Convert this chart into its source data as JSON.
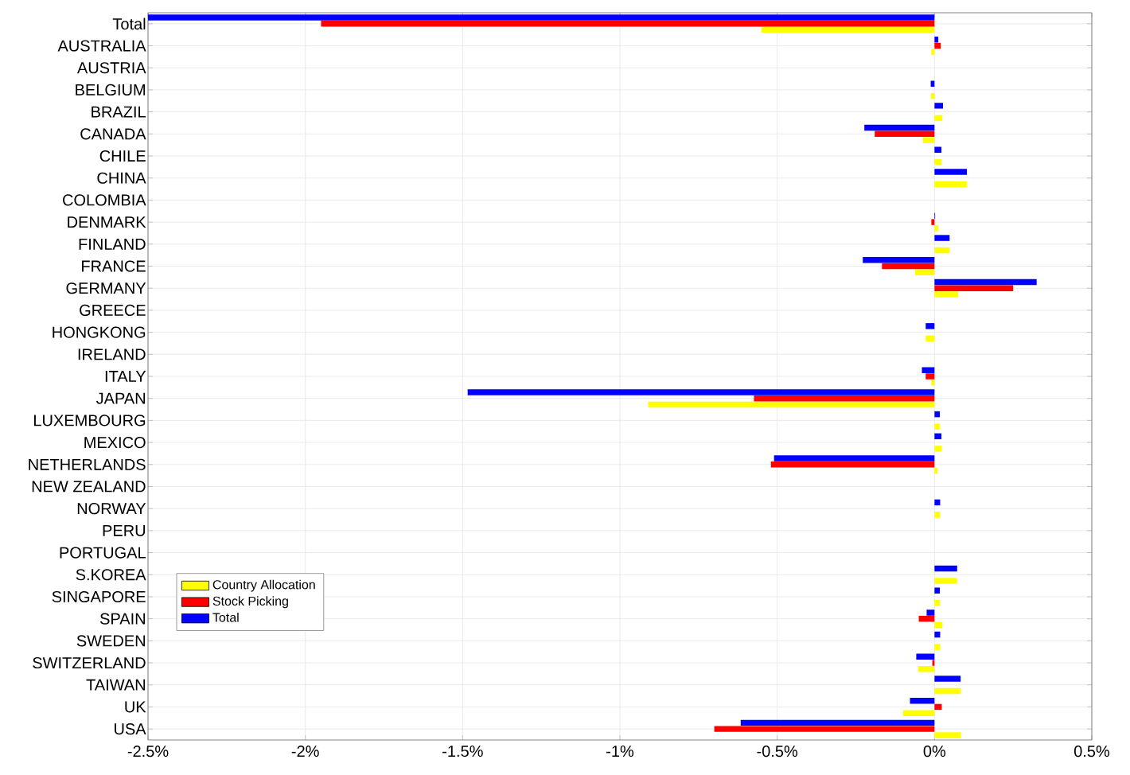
{
  "chart_data": {
    "type": "bar",
    "orientation": "horizontal",
    "categories": [
      "Total",
      "AUSTRALIA",
      "AUSTRIA",
      "BELGIUM",
      "BRAZIL",
      "CANADA",
      "CHILE",
      "CHINA",
      "COLOMBIA",
      "DENMARK",
      "FINLAND",
      "FRANCE",
      "GERMANY",
      "GREECE",
      "HONGKONG",
      "IRELAND",
      "ITALY",
      "JAPAN",
      "LUXEMBOURG",
      "MEXICO",
      "NETHERLANDS",
      "NEW ZEALAND",
      "NORWAY",
      "PERU",
      "PORTUGAL",
      "S.KOREA",
      "SINGAPORE",
      "SPAIN",
      "SWEDEN",
      "SWITZERLAND",
      "TAIWAN",
      "UK",
      "USA"
    ],
    "series": [
      {
        "name": "Country Allocation",
        "color": "#ffff00",
        "values": [
          -0.55,
          -0.01,
          0,
          -0.012,
          0.025,
          -0.037,
          0.022,
          0.103,
          0,
          0.012,
          0.048,
          -0.062,
          0.075,
          0,
          -0.028,
          0,
          -0.01,
          -0.91,
          0.017,
          0.023,
          0.01,
          0,
          0.018,
          0,
          0,
          0.072,
          0.017,
          0.025,
          0.018,
          -0.052,
          0.083,
          -0.1,
          0.084
        ]
      },
      {
        "name": "Stock Picking",
        "color": "#ff0000",
        "values": [
          -1.95,
          0.02,
          0,
          0,
          0,
          -0.19,
          0,
          0,
          0,
          -0.01,
          0,
          -0.167,
          0.25,
          0,
          0,
          0,
          -0.028,
          -0.574,
          0,
          0,
          -0.52,
          0,
          0,
          0,
          0,
          0,
          0,
          -0.05,
          0,
          -0.007,
          0,
          0.023,
          -0.7
        ]
      },
      {
        "name": "Total",
        "color": "#0000ff",
        "values": [
          -2.5,
          0.012,
          0,
          -0.012,
          0.027,
          -0.223,
          0.022,
          0.103,
          0,
          0.002,
          0.048,
          -0.228,
          0.325,
          0,
          -0.028,
          0,
          -0.04,
          -1.484,
          0.017,
          0.022,
          -0.51,
          0,
          0.018,
          0,
          0,
          0.072,
          0.017,
          -0.025,
          0.018,
          -0.058,
          0.083,
          -0.078,
          -0.616
        ]
      }
    ],
    "xlim": [
      -2.5,
      0.5
    ],
    "xticks": [
      {
        "value": -2.5,
        "label": "-2.5%"
      },
      {
        "value": -2,
        "label": "-2%"
      },
      {
        "value": -1.5,
        "label": "-1.5%"
      },
      {
        "value": -1,
        "label": "-1%"
      },
      {
        "value": -0.5,
        "label": "-0.5%"
      },
      {
        "value": 0,
        "label": "0%"
      },
      {
        "value": 0.5,
        "label": "0.5%"
      }
    ],
    "grid": true,
    "legend": "bottom left"
  }
}
